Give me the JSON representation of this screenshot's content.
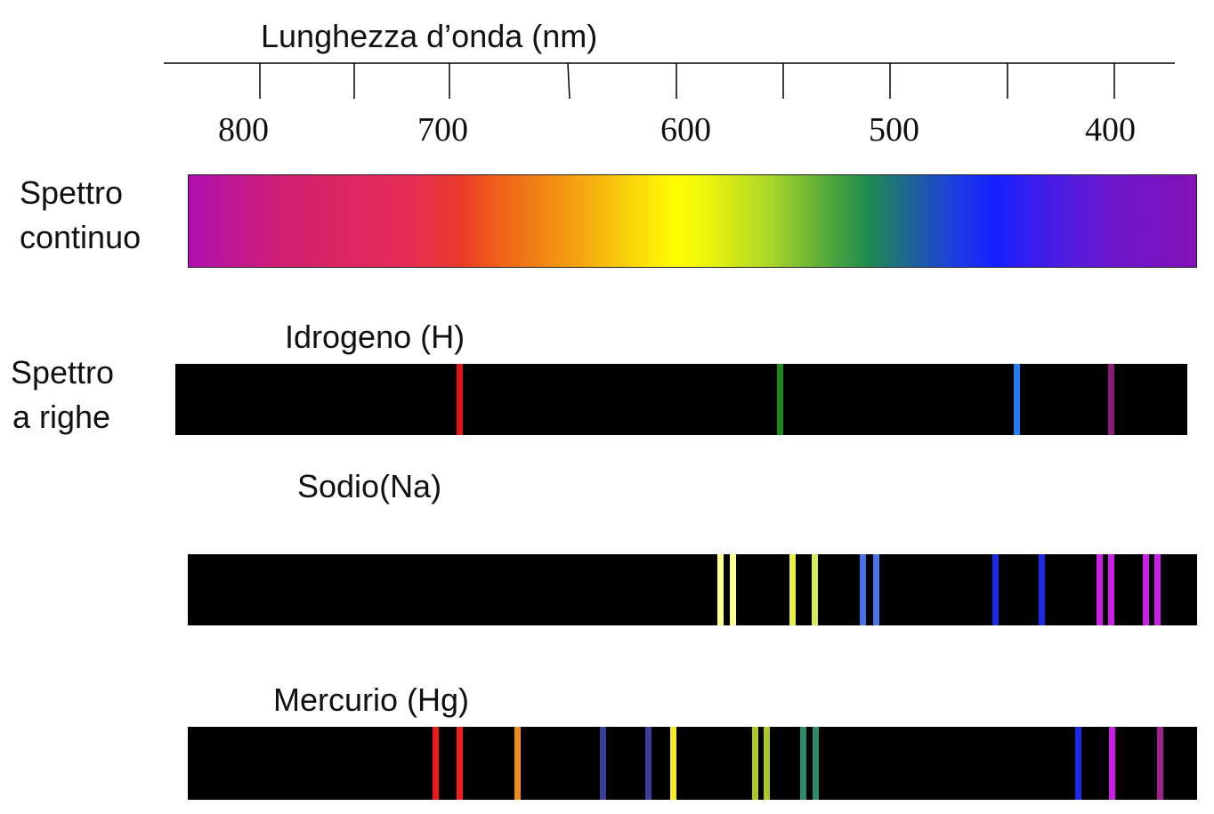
{
  "axis": {
    "title": "Lunghezza d’onda (nm)",
    "tick_labels": [
      "800",
      "700",
      "600",
      "500",
      "400"
    ],
    "line_color": "#000000"
  },
  "continuous": {
    "side_label_line1": "Spettro",
    "side_label_line2": "continuo"
  },
  "line_spectra": {
    "side_label_line1": "Spettro",
    "side_label_line2": "a righe"
  },
  "elements": [
    {
      "name": "Idrogeno (H)",
      "lines": [
        {
          "pos": 0.281,
          "color": "#e01515"
        },
        {
          "pos": 0.598,
          "color": "#1a8a1a"
        },
        {
          "pos": 0.832,
          "color": "#1c7ef0"
        },
        {
          "pos": 0.925,
          "color": "#8a1a78"
        }
      ]
    },
    {
      "name": "Sodio(Na)",
      "lines": [
        {
          "pos": 0.528,
          "color": "#ffff8c"
        },
        {
          "pos": 0.54,
          "color": "#ffff8c"
        },
        {
          "pos": 0.599,
          "color": "#e6f046"
        },
        {
          "pos": 0.621,
          "color": "#d4ec5c"
        },
        {
          "pos": 0.669,
          "color": "#4a72e8"
        },
        {
          "pos": 0.682,
          "color": "#4a72e8"
        },
        {
          "pos": 0.8,
          "color": "#1a2ae6"
        },
        {
          "pos": 0.846,
          "color": "#1a2ae6"
        },
        {
          "pos": 0.903,
          "color": "#c81ee6"
        },
        {
          "pos": 0.915,
          "color": "#c81ee6"
        },
        {
          "pos": 0.949,
          "color": "#c81ee6"
        },
        {
          "pos": 0.961,
          "color": "#c81ee6"
        }
      ]
    },
    {
      "name": "Mercurio (Hg)",
      "lines": [
        {
          "pos": 0.246,
          "color": "#e81a1a"
        },
        {
          "pos": 0.269,
          "color": "#f01e1e"
        },
        {
          "pos": 0.327,
          "color": "#f08a1a"
        },
        {
          "pos": 0.411,
          "color": "#3a3e9c"
        },
        {
          "pos": 0.456,
          "color": "#3a3e9c"
        },
        {
          "pos": 0.481,
          "color": "#f6ec28"
        },
        {
          "pos": 0.562,
          "color": "#aac828"
        },
        {
          "pos": 0.574,
          "color": "#aac828"
        },
        {
          "pos": 0.61,
          "color": "#2e8a6a"
        },
        {
          "pos": 0.622,
          "color": "#2e8a6a"
        },
        {
          "pos": 0.882,
          "color": "#1a2ae6"
        },
        {
          "pos": 0.916,
          "color": "#c81ee6"
        },
        {
          "pos": 0.963,
          "color": "#a0208c"
        }
      ]
    }
  ]
}
